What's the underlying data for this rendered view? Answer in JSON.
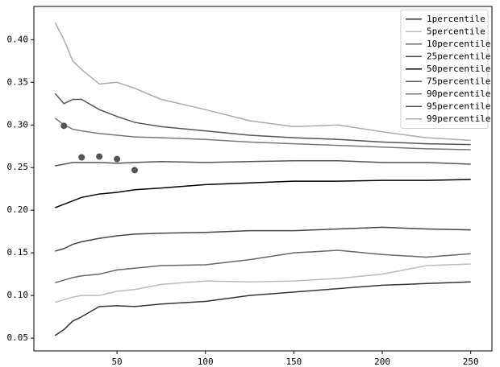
{
  "chart_data": {
    "type": "line",
    "x": [
      15,
      20,
      25,
      30,
      40,
      50,
      60,
      75,
      100,
      125,
      150,
      175,
      200,
      225,
      250
    ],
    "series": [
      {
        "name": "1percentile",
        "color": "#333333",
        "values": [
          0.053,
          0.06,
          0.07,
          0.075,
          0.087,
          0.088,
          0.087,
          0.09,
          0.093,
          0.1,
          0.104,
          0.108,
          0.112,
          0.114,
          0.116
        ]
      },
      {
        "name": "5percentile",
        "color": "#bbbbbb",
        "values": [
          0.092,
          0.095,
          0.098,
          0.1,
          0.1,
          0.105,
          0.107,
          0.113,
          0.117,
          0.116,
          0.117,
          0.12,
          0.125,
          0.135,
          0.137
        ]
      },
      {
        "name": "10percentile",
        "color": "#666666",
        "values": [
          0.115,
          0.118,
          0.121,
          0.123,
          0.125,
          0.13,
          0.132,
          0.135,
          0.136,
          0.142,
          0.15,
          0.153,
          0.148,
          0.145,
          0.149
        ]
      },
      {
        "name": "25percentile",
        "color": "#444444",
        "values": [
          0.152,
          0.155,
          0.16,
          0.163,
          0.167,
          0.17,
          0.172,
          0.173,
          0.174,
          0.176,
          0.176,
          0.178,
          0.18,
          0.178,
          0.177
        ]
      },
      {
        "name": "50percentile",
        "color": "#000000",
        "values": [
          0.203,
          0.207,
          0.211,
          0.215,
          0.219,
          0.221,
          0.224,
          0.226,
          0.23,
          0.232,
          0.234,
          0.234,
          0.235,
          0.235,
          0.236
        ]
      },
      {
        "name": "75percentile",
        "color": "#555555",
        "values": [
          0.252,
          0.254,
          0.256,
          0.256,
          0.256,
          0.255,
          0.256,
          0.257,
          0.256,
          0.257,
          0.258,
          0.258,
          0.256,
          0.256,
          0.254
        ]
      },
      {
        "name": "90percentile",
        "color": "#777777",
        "values": [
          0.308,
          0.3,
          0.295,
          0.293,
          0.29,
          0.288,
          0.286,
          0.285,
          0.283,
          0.28,
          0.278,
          0.276,
          0.274,
          0.272,
          0.271
        ]
      },
      {
        "name": "95percentile",
        "color": "#555555",
        "values": [
          0.337,
          0.325,
          0.33,
          0.33,
          0.318,
          0.31,
          0.303,
          0.298,
          0.293,
          0.288,
          0.285,
          0.283,
          0.28,
          0.278,
          0.277
        ]
      },
      {
        "name": "99percentile",
        "color": "#aaaaaa",
        "values": [
          0.42,
          0.4,
          0.375,
          0.365,
          0.348,
          0.35,
          0.343,
          0.33,
          0.318,
          0.305,
          0.298,
          0.3,
          0.292,
          0.285,
          0.282
        ]
      }
    ],
    "points": {
      "color": "#555555",
      "x": [
        20,
        30,
        40,
        50,
        60
      ],
      "y": [
        0.299,
        0.262,
        0.263,
        0.26,
        0.247
      ]
    },
    "xlim": [
      3,
      262
    ],
    "xticks": [
      50,
      100,
      150,
      200,
      250
    ],
    "ylim": [
      0.035,
      0.439
    ],
    "yticks": [
      0.05,
      {
        "value": 0.1,
        "label": "0.10"
      },
      0.15,
      {
        "value": 0.2,
        "label": "0.20"
      },
      0.25,
      {
        "value": 0.3,
        "label": "0.30"
      },
      0.35,
      {
        "value": 0.4,
        "label": "0.40"
      }
    ],
    "legend": "upper right"
  }
}
